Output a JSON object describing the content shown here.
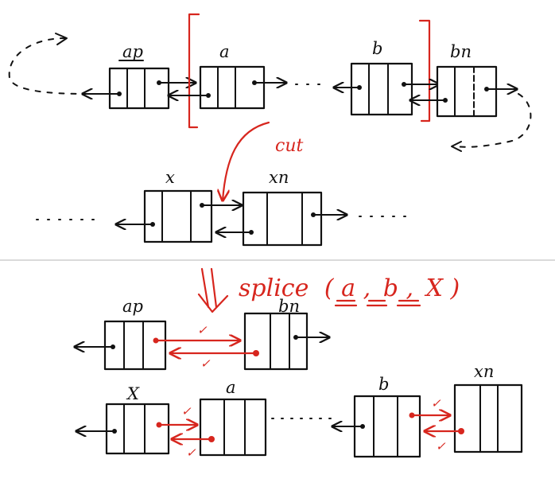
{
  "colors": {
    "ink": "#111111",
    "accent": "#d7261e",
    "divider": "#dadada",
    "background": "#ffffff"
  },
  "top": {
    "labels": {
      "ap": "ap",
      "a": "a",
      "b": "b",
      "bn": "bn"
    },
    "cut_label": "cut",
    "cut_list": {
      "x": "x",
      "xn": "xn"
    }
  },
  "bottom": {
    "operation": {
      "prefix": "splice",
      "open": "(",
      "arg1": "a",
      "sep1": ",",
      "arg2": "b",
      "sep2": ",",
      "arg3": "X",
      "close": ")"
    },
    "labels": {
      "ap": "ap",
      "bn": "bn",
      "x": "X",
      "a": "a",
      "b": "b",
      "xn": "xn"
    },
    "check_mark": "✓"
  }
}
